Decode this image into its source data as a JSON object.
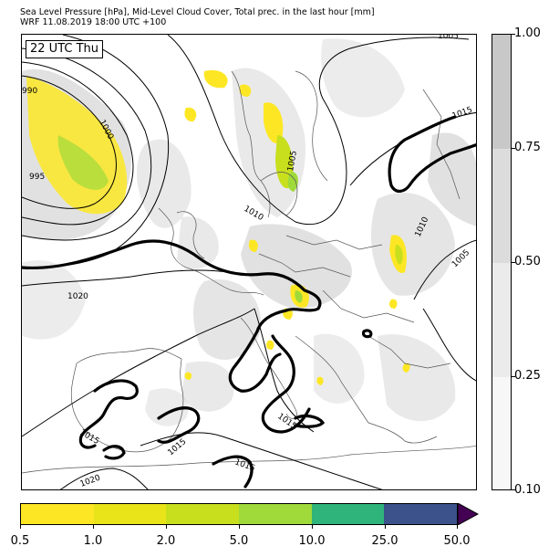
{
  "title": {
    "line1": "Sea Level Pressure [hPa], Mid-Level Cloud Cover, Total prec. in the last hour [mm]",
    "line2": "WRF 11.08.2019 18:00 UTC +100"
  },
  "time_badge": "22 UTC Thu",
  "isobar_labels": [
    "990",
    "995",
    "1000",
    "1005",
    "1010",
    "1015",
    "1020"
  ],
  "cloud_colorbar": {
    "ticks": [
      "1.00",
      "0.75",
      "0.50",
      "0.25",
      "0.10"
    ],
    "colors": [
      "#c8c8c8",
      "#dcdcdc",
      "#ebebeb",
      "#f7f7f7"
    ]
  },
  "precip_colorbar": {
    "ticks": [
      "0.5",
      "1.0",
      "2.0",
      "5.0",
      "10.0",
      "25.0",
      "50.0"
    ],
    "colors": [
      "#fde725",
      "#e8e419",
      "#c8df1e",
      "#9fda3a",
      "#2fb47c",
      "#3b528b",
      "#440154"
    ]
  }
}
